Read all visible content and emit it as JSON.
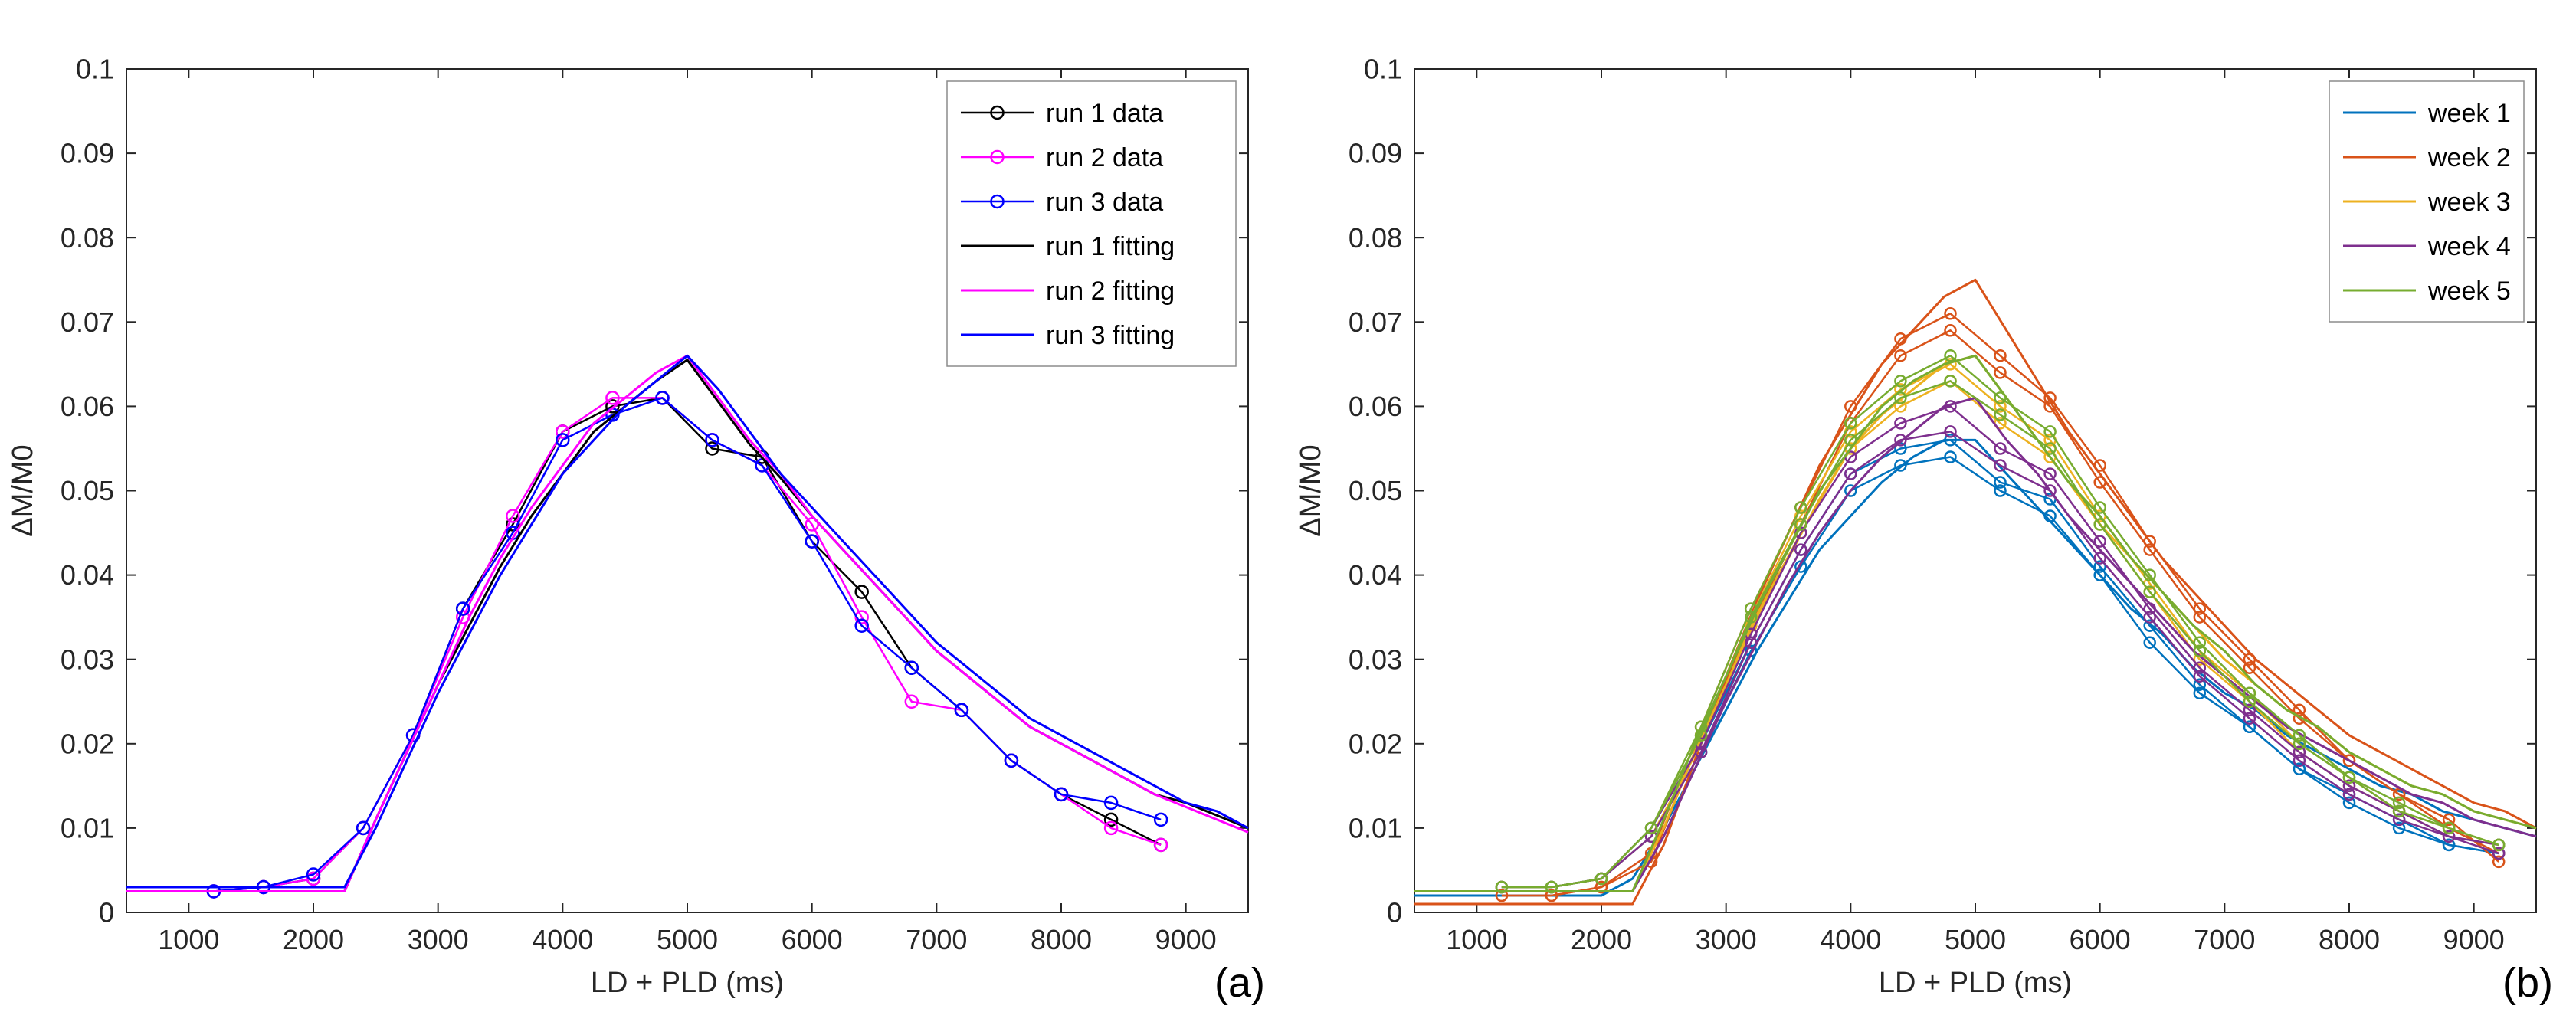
{
  "figure": {
    "background": "#ffffff"
  },
  "chart_data": [
    {
      "type": "line",
      "panel_label": "(a)",
      "xlabel": "LD + PLD (ms)",
      "ylabel": "ΔM/M0",
      "xlim": [
        500,
        9500
      ],
      "ylim": [
        0,
        0.1
      ],
      "grid": false,
      "legend_position": "northeast",
      "xticks": [
        1000,
        2000,
        3000,
        4000,
        5000,
        6000,
        7000,
        8000,
        9000
      ],
      "xtick_labels": [
        "1000",
        "2000",
        "3000",
        "4000",
        "5000",
        "6000",
        "7000",
        "8000",
        "9000"
      ],
      "yticks": [
        0,
        0.01,
        0.02,
        0.03,
        0.04,
        0.05,
        0.06,
        0.07,
        0.08,
        0.09,
        0.1
      ],
      "ytick_labels": [
        "0",
        "0.01",
        "0.02",
        "0.03",
        "0.04",
        "0.05",
        "0.06",
        "0.07",
        "0.08",
        "0.09",
        "0.1"
      ],
      "x_data": [
        1200,
        1600,
        2000,
        2400,
        2800,
        3200,
        3600,
        4000,
        4400,
        4800,
        5200,
        5600,
        6000,
        6400,
        6800,
        7200,
        7600,
        8000,
        8400,
        8800
      ],
      "x_fit": [
        500,
        750,
        1000,
        1250,
        1500,
        1750,
        2000,
        2250,
        2500,
        2750,
        3000,
        3250,
        3500,
        3750,
        4000,
        4250,
        4500,
        4750,
        5000,
        5250,
        5500,
        5750,
        6000,
        6250,
        6500,
        6750,
        7000,
        7250,
        7500,
        7750,
        8000,
        8250,
        8500,
        8750,
        9000,
        9250,
        9500
      ],
      "series": [
        {
          "name": "run 1 data",
          "legend_label": "run 1 data",
          "color": "#000000",
          "marker": "o",
          "marker_size": 8,
          "width": 2.5,
          "x": "x_data",
          "y": [
            0.0025,
            0.003,
            0.004,
            0.01,
            0.021,
            0.036,
            0.046,
            0.057,
            0.06,
            0.061,
            0.055,
            0.054,
            0.044,
            0.038,
            0.029,
            0.024,
            0.018,
            0.014,
            0.011,
            0.008
          ]
        },
        {
          "name": "run 2 data",
          "legend_label": "run 2 data",
          "color": "#FF00FF",
          "marker": "o",
          "marker_size": 8,
          "width": 2.5,
          "x": "x_data",
          "y": [
            0.0025,
            0.003,
            0.004,
            0.01,
            0.021,
            0.035,
            0.047,
            0.057,
            0.061,
            0.061,
            0.056,
            0.053,
            0.046,
            0.035,
            0.025,
            0.024,
            0.018,
            0.014,
            0.01,
            0.008
          ]
        },
        {
          "name": "run 3 data",
          "legend_label": "run 3 data",
          "color": "#0000FF",
          "marker": "o",
          "marker_size": 8,
          "width": 2.5,
          "x": "x_data",
          "y": [
            0.0025,
            0.003,
            0.0045,
            0.01,
            0.021,
            0.036,
            0.045,
            0.056,
            0.059,
            0.061,
            0.056,
            0.053,
            0.044,
            0.034,
            0.029,
            0.024,
            0.018,
            0.014,
            0.013,
            0.011
          ]
        },
        {
          "name": "run 1 fitting",
          "legend_label": "run 1 fitting",
          "color": "#000000",
          "width": 3,
          "x": "x_fit",
          "y": [
            0.0025,
            0.0025,
            0.0025,
            0.0025,
            0.0025,
            0.0025,
            0.0025,
            0.0025,
            0.011,
            0.019,
            0.027,
            0.034,
            0.041,
            0.047,
            0.052,
            0.057,
            0.06,
            0.063,
            0.0655,
            0.0605,
            0.0555,
            0.0515,
            0.047,
            0.043,
            0.039,
            0.035,
            0.031,
            0.028,
            0.025,
            0.022,
            0.02,
            0.018,
            0.016,
            0.014,
            0.013,
            0.0115,
            0.01
          ]
        },
        {
          "name": "run 2 fitting",
          "legend_label": "run 2 fitting",
          "color": "#FF00FF",
          "width": 3,
          "x": "x_fit",
          "y": [
            0.0025,
            0.0025,
            0.0025,
            0.0025,
            0.0025,
            0.0025,
            0.0025,
            0.0025,
            0.011,
            0.019,
            0.027,
            0.035,
            0.042,
            0.048,
            0.053,
            0.058,
            0.061,
            0.064,
            0.066,
            0.061,
            0.056,
            0.052,
            0.047,
            0.043,
            0.039,
            0.035,
            0.031,
            0.028,
            0.025,
            0.022,
            0.02,
            0.018,
            0.016,
            0.014,
            0.0125,
            0.011,
            0.0095
          ]
        },
        {
          "name": "run 3 fitting",
          "legend_label": "run 3 fitting",
          "color": "#0000FF",
          "width": 3,
          "x": "x_fit",
          "y": [
            0.003,
            0.003,
            0.003,
            0.003,
            0.003,
            0.003,
            0.003,
            0.003,
            0.01,
            0.018,
            0.026,
            0.033,
            0.04,
            0.046,
            0.052,
            0.056,
            0.06,
            0.063,
            0.066,
            0.062,
            0.057,
            0.052,
            0.048,
            0.044,
            0.04,
            0.036,
            0.032,
            0.029,
            0.026,
            0.023,
            0.021,
            0.019,
            0.017,
            0.015,
            0.013,
            0.012,
            0.01
          ]
        }
      ]
    },
    {
      "type": "line",
      "panel_label": "(b)",
      "xlabel": "LD + PLD (ms)",
      "ylabel": "ΔM/M0",
      "xlim": [
        500,
        9500
      ],
      "ylim": [
        0,
        0.1
      ],
      "grid": false,
      "legend_position": "northeast",
      "xticks": [
        1000,
        2000,
        3000,
        4000,
        5000,
        6000,
        7000,
        8000,
        9000
      ],
      "xtick_labels": [
        "1000",
        "2000",
        "3000",
        "4000",
        "5000",
        "6000",
        "7000",
        "8000",
        "9000"
      ],
      "yticks": [
        0,
        0.01,
        0.02,
        0.03,
        0.04,
        0.05,
        0.06,
        0.07,
        0.08,
        0.09,
        0.1
      ],
      "ytick_labels": [
        "0",
        "0.01",
        "0.02",
        "0.03",
        "0.04",
        "0.05",
        "0.06",
        "0.07",
        "0.08",
        "0.09",
        "0.1"
      ],
      "x_data": [
        1200,
        1600,
        2000,
        2400,
        2800,
        3200,
        3600,
        4000,
        4400,
        4800,
        5200,
        5600,
        6000,
        6400,
        6800,
        7200,
        7600,
        8000,
        8400,
        8800,
        9200
      ],
      "x_fit": [
        500,
        750,
        1000,
        1250,
        1500,
        1750,
        2000,
        2250,
        2500,
        2750,
        3000,
        3250,
        3500,
        3750,
        4000,
        4250,
        4500,
        4750,
        5000,
        5250,
        5500,
        5750,
        6000,
        6250,
        6500,
        6750,
        7000,
        7250,
        7500,
        7750,
        8000,
        8250,
        8500,
        8750,
        9000,
        9250,
        9500
      ],
      "series": [
        {
          "name": "week 1 run 1 data",
          "color": "#0072BD",
          "marker": "o",
          "marker_size": 7,
          "width": 2.5,
          "x": "x_data",
          "y": [
            0.003,
            0.003,
            0.004,
            0.009,
            0.019,
            0.031,
            0.041,
            0.05,
            0.053,
            0.054,
            0.05,
            0.047,
            0.04,
            0.032,
            0.026,
            0.022,
            0.017,
            0.013,
            0.01,
            0.008,
            0.007
          ]
        },
        {
          "name": "week 1 run 2 data",
          "color": "#0072BD",
          "marker": "o",
          "marker_size": 7,
          "width": 2.5,
          "x": "x_data",
          "y": [
            0.003,
            0.003,
            0.004,
            0.01,
            0.02,
            0.032,
            0.043,
            0.052,
            0.055,
            0.056,
            0.051,
            0.049,
            0.041,
            0.034,
            0.027,
            0.022,
            0.017,
            0.014,
            0.011,
            0.008,
            0.007
          ]
        },
        {
          "name": "week 1 fitting",
          "legend_label": "week 1",
          "color": "#0072BD",
          "width": 3,
          "x": "x_fit",
          "y": [
            0.002,
            0.002,
            0.002,
            0.002,
            0.002,
            0.002,
            0.002,
            0.004,
            0.01,
            0.017,
            0.024,
            0.031,
            0.037,
            0.043,
            0.047,
            0.051,
            0.054,
            0.056,
            0.056,
            0.052,
            0.048,
            0.044,
            0.04,
            0.036,
            0.033,
            0.029,
            0.026,
            0.024,
            0.021,
            0.019,
            0.017,
            0.015,
            0.014,
            0.012,
            0.011,
            0.01,
            0.009
          ]
        },
        {
          "name": "week 2 run 1 data",
          "color": "#D95319",
          "marker": "o",
          "marker_size": 7,
          "width": 2.5,
          "x": "x_data",
          "y": [
            0.002,
            0.002,
            0.003,
            0.006,
            0.021,
            0.034,
            0.046,
            0.058,
            0.066,
            0.069,
            0.064,
            0.06,
            0.051,
            0.043,
            0.035,
            0.029,
            0.023,
            0.018,
            0.014,
            0.01,
            0.007
          ]
        },
        {
          "name": "week 2 run 2 data",
          "color": "#D95319",
          "marker": "o",
          "marker_size": 7,
          "width": 2.5,
          "x": "x_data",
          "y": [
            0.002,
            0.002,
            0.003,
            0.007,
            0.022,
            0.036,
            0.048,
            0.06,
            0.068,
            0.071,
            0.066,
            0.061,
            0.053,
            0.044,
            0.036,
            0.03,
            0.024,
            0.018,
            0.014,
            0.011,
            0.006
          ]
        },
        {
          "name": "week 2 fitting",
          "legend_label": "week 2",
          "color": "#D95319",
          "width": 3,
          "x": "x_fit",
          "y": [
            0.001,
            0.001,
            0.001,
            0.001,
            0.001,
            0.001,
            0.001,
            0.001,
            0.008,
            0.018,
            0.028,
            0.037,
            0.045,
            0.053,
            0.059,
            0.065,
            0.069,
            0.073,
            0.075,
            0.069,
            0.063,
            0.057,
            0.052,
            0.047,
            0.042,
            0.038,
            0.034,
            0.03,
            0.027,
            0.024,
            0.021,
            0.019,
            0.017,
            0.015,
            0.013,
            0.012,
            0.01
          ]
        },
        {
          "name": "week 3 run 1 data",
          "color": "#EDB120",
          "marker": "o",
          "marker_size": 7,
          "width": 2.5,
          "x": "x_data",
          "y": [
            0.003,
            0.003,
            0.004,
            0.009,
            0.02,
            0.034,
            0.045,
            0.055,
            0.06,
            0.063,
            0.058,
            0.054,
            0.046,
            0.038,
            0.03,
            0.025,
            0.019,
            0.015,
            0.012,
            0.009,
            0.008
          ]
        },
        {
          "name": "week 3 run 2 data",
          "color": "#EDB120",
          "marker": "o",
          "marker_size": 7,
          "width": 2.5,
          "x": "x_data",
          "y": [
            0.003,
            0.003,
            0.004,
            0.01,
            0.021,
            0.035,
            0.047,
            0.057,
            0.062,
            0.065,
            0.06,
            0.056,
            0.047,
            0.039,
            0.031,
            0.026,
            0.02,
            0.016,
            0.012,
            0.01,
            0.008
          ]
        },
        {
          "name": "week 3 fitting",
          "legend_label": "week 3",
          "color": "#EDB120",
          "width": 3,
          "x": "x_fit",
          "y": [
            0.0025,
            0.0025,
            0.0025,
            0.0025,
            0.0025,
            0.0025,
            0.0025,
            0.0025,
            0.01,
            0.019,
            0.027,
            0.035,
            0.042,
            0.049,
            0.055,
            0.059,
            0.062,
            0.065,
            0.066,
            0.061,
            0.056,
            0.051,
            0.046,
            0.042,
            0.038,
            0.034,
            0.03,
            0.027,
            0.024,
            0.022,
            0.019,
            0.017,
            0.015,
            0.014,
            0.012,
            0.011,
            0.01
          ]
        },
        {
          "name": "week 4 run 1 data",
          "color": "#7E2F8E",
          "marker": "o",
          "marker_size": 7,
          "width": 2.5,
          "x": "x_data",
          "y": [
            0.003,
            0.003,
            0.004,
            0.009,
            0.019,
            0.032,
            0.043,
            0.052,
            0.056,
            0.057,
            0.053,
            0.05,
            0.042,
            0.035,
            0.028,
            0.023,
            0.018,
            0.014,
            0.011,
            0.009,
            0.007
          ]
        },
        {
          "name": "week 4 run 2 data",
          "color": "#7E2F8E",
          "marker": "o",
          "marker_size": 7,
          "width": 2.5,
          "x": "x_data",
          "y": [
            0.003,
            0.003,
            0.004,
            0.01,
            0.02,
            0.033,
            0.045,
            0.054,
            0.058,
            0.06,
            0.055,
            0.052,
            0.044,
            0.036,
            0.029,
            0.024,
            0.019,
            0.015,
            0.012,
            0.009,
            0.008
          ]
        },
        {
          "name": "week 4 fitting",
          "legend_label": "week 4",
          "color": "#7E2F8E",
          "width": 3,
          "x": "x_fit",
          "y": [
            0.0025,
            0.0025,
            0.0025,
            0.0025,
            0.0025,
            0.0025,
            0.0025,
            0.0025,
            0.009,
            0.017,
            0.025,
            0.032,
            0.039,
            0.045,
            0.05,
            0.054,
            0.057,
            0.06,
            0.061,
            0.056,
            0.052,
            0.047,
            0.043,
            0.039,
            0.035,
            0.031,
            0.028,
            0.025,
            0.022,
            0.02,
            0.018,
            0.016,
            0.014,
            0.013,
            0.011,
            0.01,
            0.009
          ]
        },
        {
          "name": "week 5 run 1 data",
          "color": "#77AC30",
          "marker": "o",
          "marker_size": 7,
          "width": 2.5,
          "x": "x_data",
          "y": [
            0.003,
            0.003,
            0.004,
            0.01,
            0.021,
            0.035,
            0.046,
            0.056,
            0.061,
            0.063,
            0.059,
            0.055,
            0.046,
            0.038,
            0.031,
            0.025,
            0.02,
            0.016,
            0.012,
            0.01,
            0.008
          ]
        },
        {
          "name": "week 5 run 2 data",
          "color": "#77AC30",
          "marker": "o",
          "marker_size": 7,
          "width": 2.5,
          "x": "x_data",
          "y": [
            0.003,
            0.003,
            0.004,
            0.01,
            0.022,
            0.036,
            0.048,
            0.058,
            0.063,
            0.066,
            0.061,
            0.057,
            0.048,
            0.04,
            0.032,
            0.026,
            0.021,
            0.016,
            0.013,
            0.01,
            0.008
          ]
        },
        {
          "name": "week 5 fitting",
          "legend_label": "week 5",
          "color": "#77AC30",
          "width": 3,
          "x": "x_fit",
          "y": [
            0.0025,
            0.0025,
            0.0025,
            0.0025,
            0.0025,
            0.0025,
            0.0025,
            0.0025,
            0.011,
            0.02,
            0.028,
            0.036,
            0.043,
            0.05,
            0.055,
            0.06,
            0.063,
            0.065,
            0.066,
            0.061,
            0.056,
            0.051,
            0.047,
            0.042,
            0.038,
            0.034,
            0.031,
            0.027,
            0.024,
            0.022,
            0.019,
            0.017,
            0.015,
            0.014,
            0.012,
            0.011,
            0.01
          ]
        }
      ]
    }
  ]
}
